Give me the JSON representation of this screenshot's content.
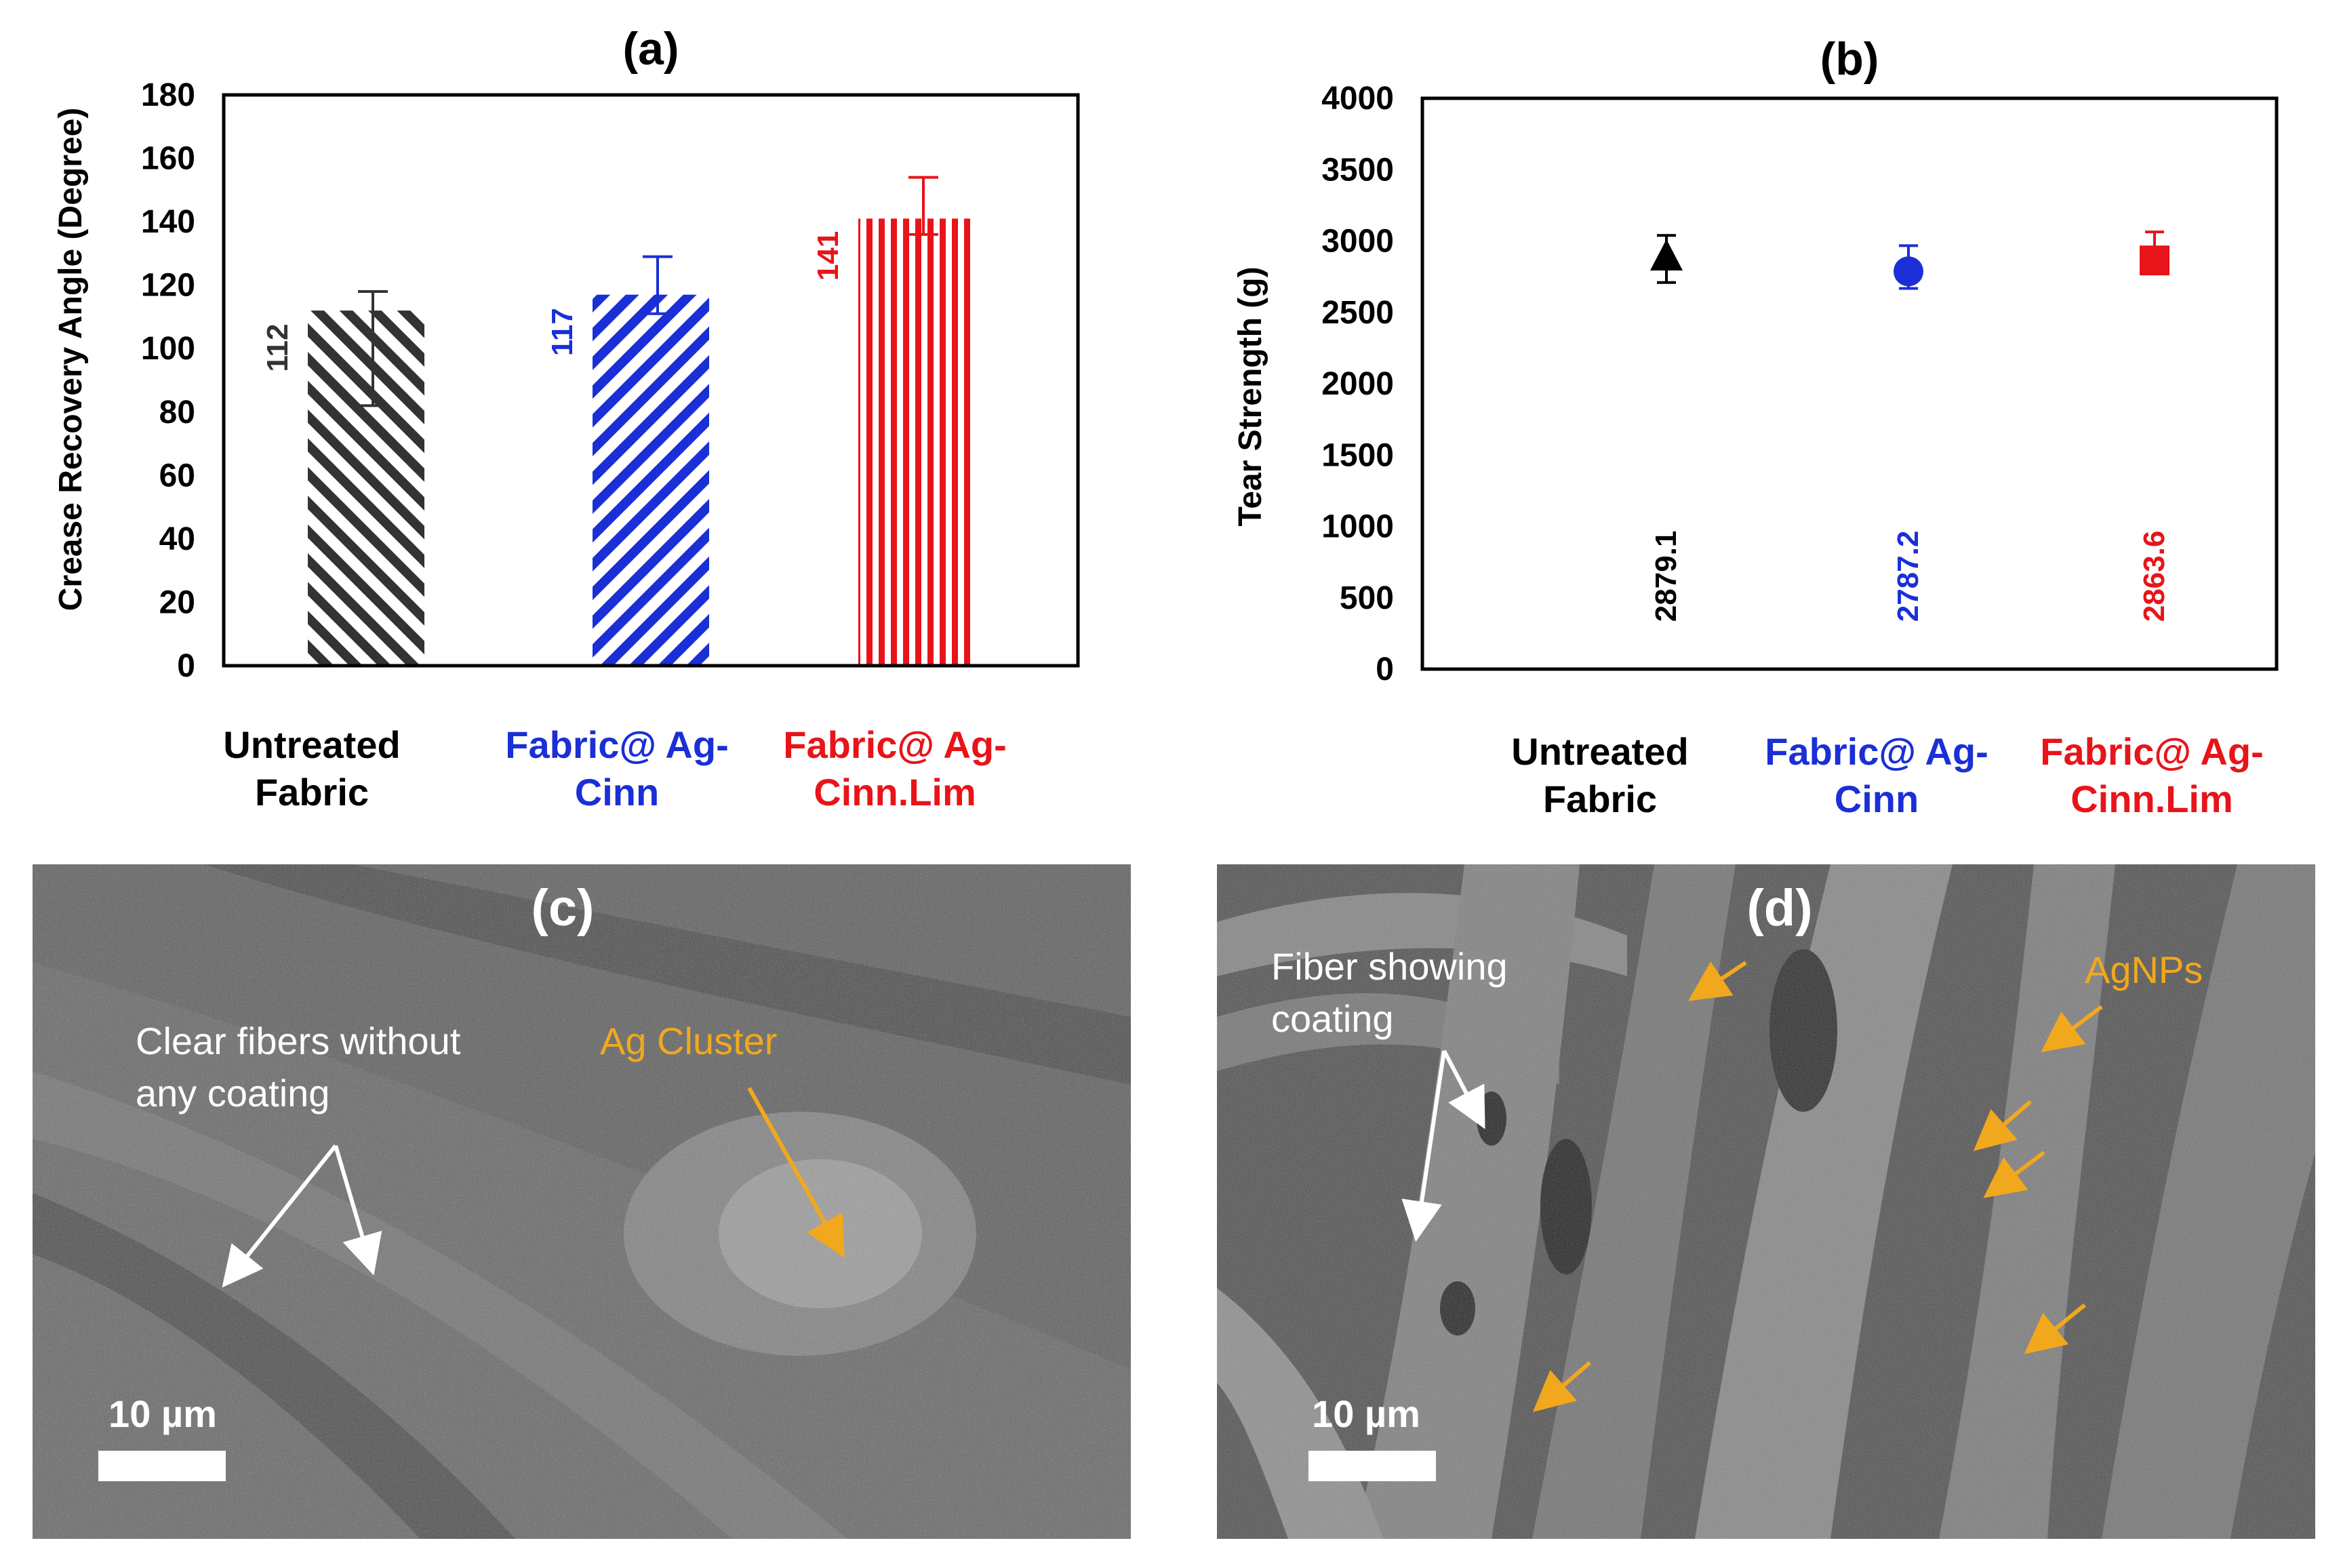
{
  "chart_data": [
    {
      "panel": "(a)",
      "type": "bar",
      "title": "(a)",
      "ylabel": "Crease Recovery Angle (Degree)",
      "ylim": [
        0,
        180
      ],
      "yticks": [
        0,
        20,
        40,
        60,
        80,
        100,
        120,
        140,
        160,
        180
      ],
      "categories": [
        "Untreated Fabric",
        "Fabric@ Ag-Cinn",
        "Fabric@ Ag-Cinn.Lim"
      ],
      "category_lines": [
        [
          "Untreated",
          "Fabric"
        ],
        [
          "Fabric@ Ag-",
          "Cinn"
        ],
        [
          "Fabric@ Ag-",
          "Cinn.Lim"
        ]
      ],
      "values": [
        112,
        117,
        141
      ],
      "value_labels": [
        "112",
        "117",
        "141"
      ],
      "error_plus": [
        6,
        12,
        13
      ],
      "error_minus": [
        30,
        6,
        5
      ],
      "colors": [
        "#333333",
        "#1a2fd6",
        "#e8141a"
      ],
      "patterns": [
        "diagonal-left",
        "diagonal-right",
        "vertical"
      ]
    },
    {
      "panel": "(b)",
      "type": "scatter",
      "title": "(b)",
      "ylabel": "Tear Strength (g)",
      "ylim": [
        0,
        4000
      ],
      "yticks": [
        0,
        500,
        1000,
        1500,
        2000,
        2500,
        3000,
        3500,
        4000
      ],
      "categories": [
        "Untreated Fabric",
        "Fabric@ Ag-Cinn",
        "Fabric@ Ag-Cinn.Lim"
      ],
      "category_lines": [
        [
          "Untreated",
          "Fabric"
        ],
        [
          "Fabric@ Ag-",
          "Cinn"
        ],
        [
          "Fabric@ Ag-",
          "Cinn.Lim"
        ]
      ],
      "values": [
        2879.1,
        2787.2,
        2863.6
      ],
      "value_labels": [
        "2879.1",
        "2787.2",
        "2863.6"
      ],
      "error_plus": [
        160,
        180,
        200
      ],
      "error_minus": [
        170,
        120,
        90
      ],
      "markers": [
        "triangle",
        "circle",
        "square"
      ],
      "colors": [
        "#000000",
        "#1a2fd6",
        "#e8141a"
      ]
    }
  ],
  "sem": {
    "c": {
      "title": "(c)",
      "annotation_white": [
        "Clear fibers without",
        "any coating"
      ],
      "annotation_orange": "Ag Cluster",
      "scale_bar": "10 µm"
    },
    "d": {
      "title": "(d)",
      "annotation_white": [
        "Fiber showing",
        "coating"
      ],
      "annotation_orange": "AgNPs",
      "scale_bar": "10 µm"
    }
  },
  "colors": {
    "orange": "#f2a81d",
    "sem_bg": "#6a6a6a"
  }
}
